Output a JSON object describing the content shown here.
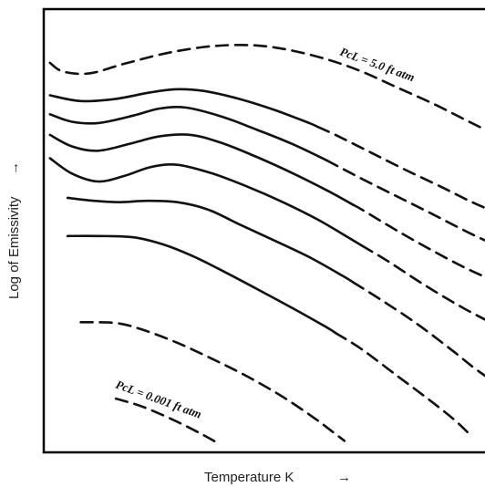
{
  "chart_data": {
    "type": "line",
    "title": "",
    "xlabel": "Temperature  K",
    "ylabel": "Log of Emissivity",
    "xlabel_arrow": "→",
    "ylabel_arrow": "→",
    "x_ticks": "none",
    "y_ticks": "none",
    "grid": false,
    "legend": "none",
    "series_color": "#111111",
    "annotations": [
      {
        "text": "PcL = 5.0 ft atm",
        "attached_to": "top curve"
      },
      {
        "text": "PcL = 0.001 ft atm",
        "attached_to": "bottom curve"
      }
    ],
    "series": [
      {
        "style": "dashed",
        "points": [
          [
            0.01,
            0.882
          ],
          [
            0.04,
            0.862
          ],
          [
            0.1,
            0.858
          ],
          [
            0.18,
            0.88
          ],
          [
            0.28,
            0.905
          ],
          [
            0.38,
            0.92
          ],
          [
            0.47,
            0.922
          ],
          [
            0.55,
            0.912
          ],
          [
            0.64,
            0.89
          ],
          [
            0.72,
            0.862
          ],
          [
            0.8,
            0.826
          ],
          [
            0.88,
            0.79
          ],
          [
            0.95,
            0.755
          ],
          [
            1.0,
            0.73
          ]
        ]
      },
      {
        "style": "solid-then-dashed",
        "dash_from_x": 0.62,
        "points": [
          [
            0.01,
            0.808
          ],
          [
            0.08,
            0.795
          ],
          [
            0.16,
            0.8
          ],
          [
            0.24,
            0.815
          ],
          [
            0.3,
            0.822
          ],
          [
            0.36,
            0.818
          ],
          [
            0.44,
            0.8
          ],
          [
            0.52,
            0.775
          ],
          [
            0.6,
            0.745
          ],
          [
            0.66,
            0.718
          ],
          [
            0.74,
            0.678
          ],
          [
            0.82,
            0.638
          ],
          [
            0.9,
            0.6
          ],
          [
            0.96,
            0.57
          ],
          [
            1.0,
            0.552
          ]
        ]
      },
      {
        "style": "solid-then-dashed",
        "dash_from_x": 0.64,
        "points": [
          [
            0.01,
            0.765
          ],
          [
            0.06,
            0.748
          ],
          [
            0.12,
            0.745
          ],
          [
            0.2,
            0.762
          ],
          [
            0.26,
            0.778
          ],
          [
            0.32,
            0.78
          ],
          [
            0.4,
            0.76
          ],
          [
            0.48,
            0.73
          ],
          [
            0.56,
            0.698
          ],
          [
            0.64,
            0.66
          ],
          [
            0.72,
            0.618
          ],
          [
            0.8,
            0.578
          ],
          [
            0.88,
            0.538
          ],
          [
            0.95,
            0.502
          ],
          [
            1.0,
            0.478
          ]
        ]
      },
      {
        "style": "solid-then-dashed",
        "dash_from_x": 0.7,
        "points": [
          [
            0.01,
            0.718
          ],
          [
            0.06,
            0.692
          ],
          [
            0.12,
            0.682
          ],
          [
            0.2,
            0.7
          ],
          [
            0.26,
            0.715
          ],
          [
            0.33,
            0.718
          ],
          [
            0.4,
            0.7
          ],
          [
            0.48,
            0.668
          ],
          [
            0.56,
            0.632
          ],
          [
            0.64,
            0.592
          ],
          [
            0.72,
            0.548
          ],
          [
            0.8,
            0.5
          ],
          [
            0.88,
            0.455
          ],
          [
            0.95,
            0.418
          ],
          [
            1.0,
            0.395
          ]
        ]
      },
      {
        "style": "solid-then-dashed",
        "dash_from_x": 0.72,
        "points": [
          [
            0.01,
            0.665
          ],
          [
            0.06,
            0.63
          ],
          [
            0.12,
            0.612
          ],
          [
            0.18,
            0.625
          ],
          [
            0.24,
            0.645
          ],
          [
            0.3,
            0.65
          ],
          [
            0.38,
            0.63
          ],
          [
            0.46,
            0.6
          ],
          [
            0.54,
            0.565
          ],
          [
            0.62,
            0.525
          ],
          [
            0.7,
            0.478
          ],
          [
            0.78,
            0.43
          ],
          [
            0.86,
            0.378
          ],
          [
            0.94,
            0.33
          ],
          [
            1.0,
            0.298
          ]
        ]
      },
      {
        "style": "solid-then-dashed",
        "dash_from_x": 0.7,
        "points": [
          [
            0.05,
            0.575
          ],
          [
            0.11,
            0.568
          ],
          [
            0.17,
            0.565
          ],
          [
            0.23,
            0.568
          ],
          [
            0.3,
            0.565
          ],
          [
            0.37,
            0.548
          ],
          [
            0.44,
            0.515
          ],
          [
            0.52,
            0.478
          ],
          [
            0.6,
            0.44
          ],
          [
            0.68,
            0.395
          ],
          [
            0.76,
            0.345
          ],
          [
            0.84,
            0.292
          ],
          [
            0.92,
            0.232
          ],
          [
            0.97,
            0.192
          ],
          [
            1.0,
            0.17
          ]
        ]
      },
      {
        "style": "solid-then-dashed",
        "dash_from_x": 0.66,
        "points": [
          [
            0.05,
            0.488
          ],
          [
            0.12,
            0.488
          ],
          [
            0.2,
            0.485
          ],
          [
            0.27,
            0.468
          ],
          [
            0.34,
            0.44
          ],
          [
            0.41,
            0.405
          ],
          [
            0.48,
            0.368
          ],
          [
            0.56,
            0.325
          ],
          [
            0.64,
            0.28
          ],
          [
            0.72,
            0.23
          ],
          [
            0.8,
            0.17
          ],
          [
            0.88,
            0.11
          ],
          [
            0.93,
            0.07
          ],
          [
            0.96,
            0.042
          ]
        ]
      },
      {
        "style": "dashed",
        "points": [
          [
            0.08,
            0.292
          ],
          [
            0.16,
            0.29
          ],
          [
            0.22,
            0.275
          ],
          [
            0.3,
            0.245
          ],
          [
            0.38,
            0.208
          ],
          [
            0.46,
            0.168
          ],
          [
            0.54,
            0.122
          ],
          [
            0.61,
            0.075
          ],
          [
            0.65,
            0.045
          ],
          [
            0.68,
            0.022
          ]
        ]
      },
      {
        "style": "dashed",
        "points": [
          [
            0.16,
            0.118
          ],
          [
            0.22,
            0.1
          ],
          [
            0.29,
            0.07
          ],
          [
            0.35,
            0.04
          ],
          [
            0.39,
            0.018
          ]
        ]
      }
    ]
  }
}
